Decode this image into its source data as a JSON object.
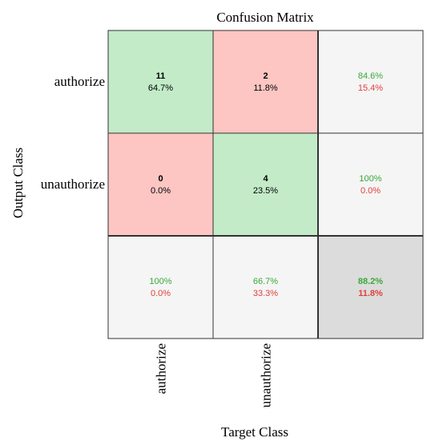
{
  "chart_data": {
    "type": "heatmap",
    "title": "Confusion Matrix",
    "xlabel": "Target Class",
    "ylabel": "Output Class",
    "output_classes": [
      "authorize",
      "unauthorize"
    ],
    "target_classes": [
      "authorize",
      "unauthorize"
    ],
    "matrix": [
      [
        {
          "count": "11",
          "percent": "64.7%"
        },
        {
          "count": "2",
          "percent": "11.8%"
        }
      ],
      [
        {
          "count": "0",
          "percent": "0.0%"
        },
        {
          "count": "4",
          "percent": "23.5%"
        }
      ]
    ],
    "row_summary": [
      {
        "correct": "84.6%",
        "incorrect": "15.4%"
      },
      {
        "correct": "100%",
        "incorrect": "0.0%"
      }
    ],
    "column_summary": [
      {
        "correct": "100%",
        "incorrect": "0.0%"
      },
      {
        "correct": "66.7%",
        "incorrect": "33.3%"
      }
    ],
    "overall": {
      "correct": "88.2%",
      "incorrect": "11.8%"
    }
  },
  "colors": {
    "correct_cell": "#c3ebc8",
    "incorrect_cell": "#fdc6c3",
    "summary_cell": "#f5f5f5",
    "overall_cell": "#dcdcdc",
    "correct_text": "#3aa83a",
    "incorrect_text": "#e0413a",
    "grid_line": "#333333"
  }
}
